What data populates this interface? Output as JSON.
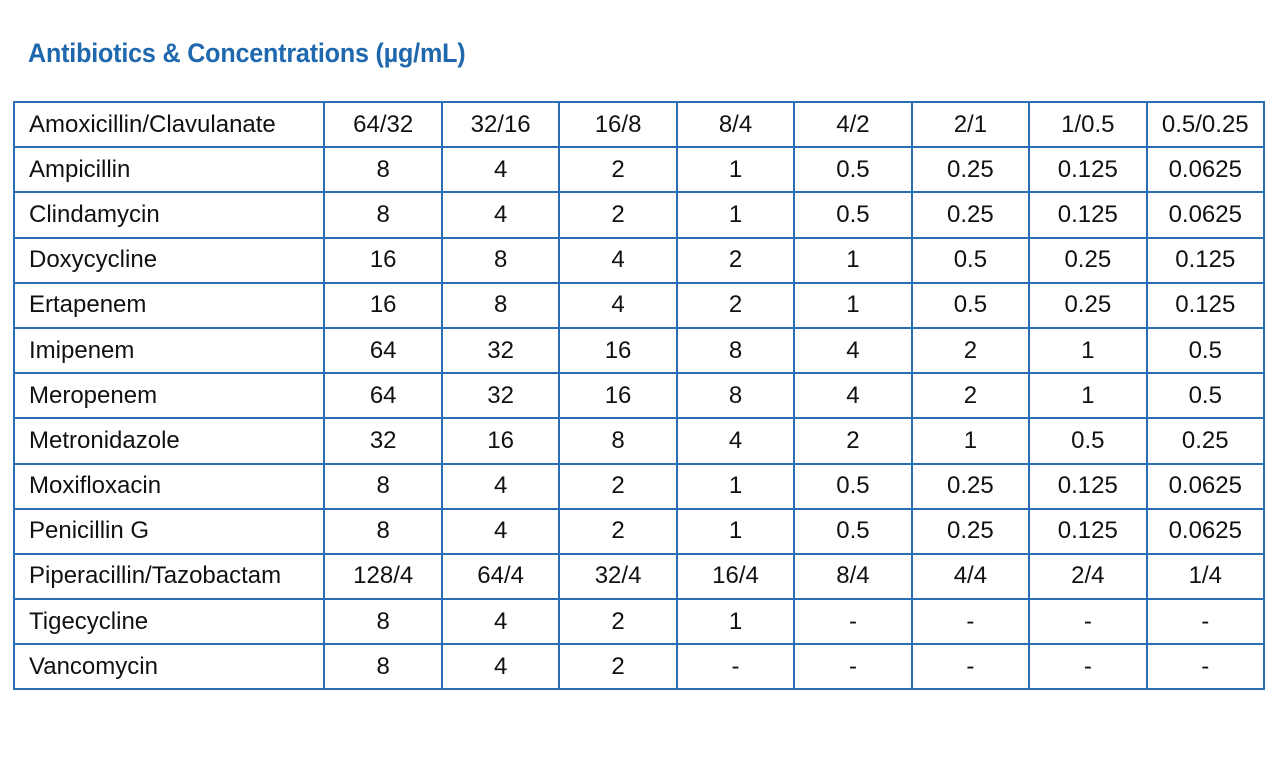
{
  "title": "Antibiotics & Concentrations (µg/mL)",
  "table": {
    "rows": [
      {
        "name": "Amoxicillin/Clavulanate",
        "values": [
          "64/32",
          "32/16",
          "16/8",
          "8/4",
          "4/2",
          "2/1",
          "1/0.5",
          "0.5/0.25"
        ]
      },
      {
        "name": "Ampicillin",
        "values": [
          "8",
          "4",
          "2",
          "1",
          "0.5",
          "0.25",
          "0.125",
          "0.0625"
        ]
      },
      {
        "name": "Clindamycin",
        "values": [
          "8",
          "4",
          "2",
          "1",
          "0.5",
          "0.25",
          "0.125",
          "0.0625"
        ]
      },
      {
        "name": "Doxycycline",
        "values": [
          "16",
          "8",
          "4",
          "2",
          "1",
          "0.5",
          "0.25",
          "0.125"
        ]
      },
      {
        "name": "Ertapenem",
        "values": [
          "16",
          "8",
          "4",
          "2",
          "1",
          "0.5",
          "0.25",
          "0.125"
        ]
      },
      {
        "name": "Imipenem",
        "values": [
          "64",
          "32",
          "16",
          "8",
          "4",
          "2",
          "1",
          "0.5"
        ]
      },
      {
        "name": "Meropenem",
        "values": [
          "64",
          "32",
          "16",
          "8",
          "4",
          "2",
          "1",
          "0.5"
        ]
      },
      {
        "name": "Metronidazole",
        "values": [
          "32",
          "16",
          "8",
          "4",
          "2",
          "1",
          "0.5",
          "0.25"
        ]
      },
      {
        "name": "Moxifloxacin",
        "values": [
          "8",
          "4",
          "2",
          "1",
          "0.5",
          "0.25",
          "0.125",
          "0.0625"
        ]
      },
      {
        "name": "Penicillin G",
        "values": [
          "8",
          "4",
          "2",
          "1",
          "0.5",
          "0.25",
          "0.125",
          "0.0625"
        ]
      },
      {
        "name": "Piperacillin/Tazobactam",
        "values": [
          "128/4",
          "64/4",
          "32/4",
          "16/4",
          "8/4",
          "4/4",
          "2/4",
          "1/4"
        ]
      },
      {
        "name": "Tigecycline",
        "values": [
          "8",
          "4",
          "2",
          "1",
          "-",
          "-",
          "-",
          "-"
        ]
      },
      {
        "name": "Vancomycin",
        "values": [
          "8",
          "4",
          "2",
          "-",
          "-",
          "-",
          "-",
          "-"
        ]
      }
    ]
  },
  "colors": {
    "title": "#1f68ad",
    "border": "#2a6fb5",
    "text": "#111111"
  }
}
